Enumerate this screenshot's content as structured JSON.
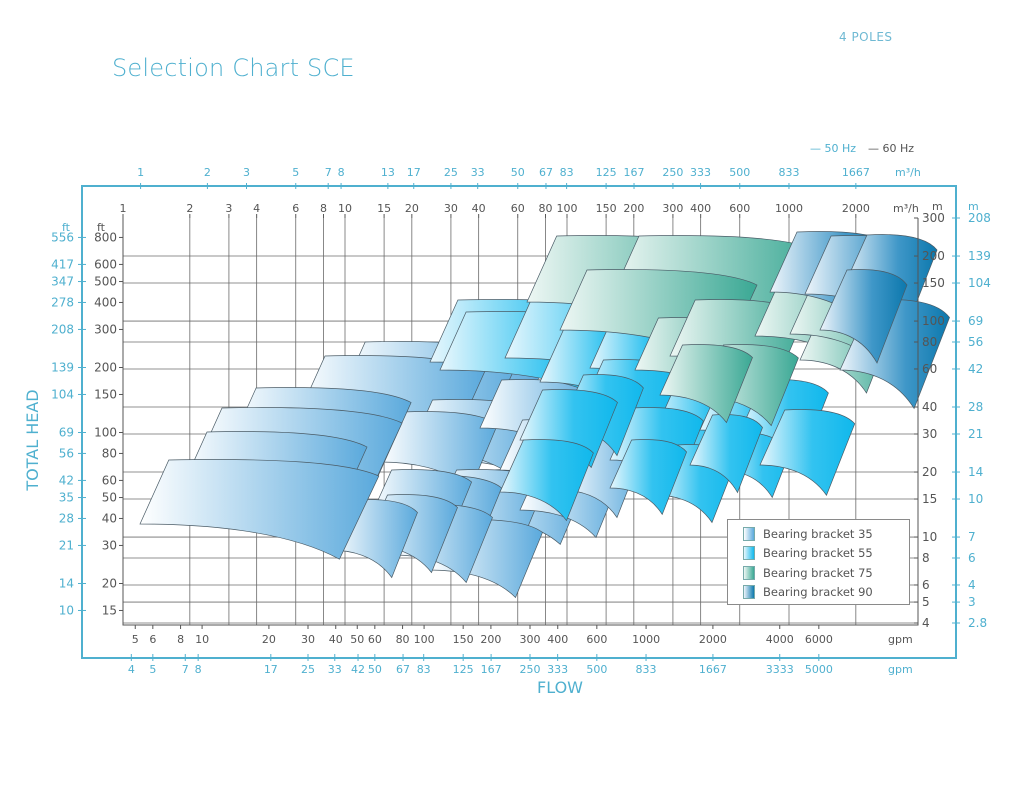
{
  "header": {
    "title": "Selection Chart SCE",
    "poles": "4 POLES",
    "legend_50hz": "— 50 Hz",
    "legend_60hz": "— 60 Hz"
  },
  "colors": {
    "accent": "#4fb0cf",
    "axis_dark": "#555555",
    "grid": "#6b6b6b",
    "bb35": "#5aa9dc",
    "bb55": "#10b8ec",
    "bb75": "#3aa894",
    "bb90": "#0c78ad"
  },
  "chart_data": {
    "type": "area",
    "title": "Selection Chart SCE",
    "subtitle": "4 POLES",
    "xlabel": "FLOW",
    "ylabel": "TOTAL HEAD",
    "x_scale": "log",
    "y_scale": "log",
    "frequency_legend": [
      "50 Hz",
      "60 Hz"
    ],
    "x_axis_top_50hz_m3h": {
      "unit": "m³/h",
      "ticks": [
        "1",
        "2",
        "3",
        "5",
        "7",
        "8",
        "13",
        "17",
        "25",
        "33",
        "50",
        "67",
        "83",
        "125",
        "167",
        "250",
        "333",
        "500",
        "833",
        "1667"
      ]
    },
    "x_axis_top_60hz_m3h": {
      "unit": "m³/h",
      "ticks": [
        "1",
        "2",
        "3",
        "4",
        "6",
        "8",
        "10",
        "15",
        "20",
        "30",
        "40",
        "60",
        "80",
        "100",
        "150",
        "200",
        "300",
        "400",
        "600",
        "1000",
        "2000"
      ]
    },
    "x_axis_bottom_60hz_gpm": {
      "unit": "gpm",
      "ticks": [
        "5",
        "6",
        "8",
        "10",
        "20",
        "30",
        "40",
        "50",
        "60",
        "80",
        "100",
        "150",
        "200",
        "300",
        "400",
        "600",
        "1000",
        "2000",
        "4000",
        "6000"
      ]
    },
    "x_axis_bottom_50hz_gpm": {
      "unit": "gpm",
      "ticks": [
        "4",
        "5",
        "7",
        "8",
        "17",
        "25",
        "33",
        "42",
        "50",
        "67",
        "83",
        "125",
        "167",
        "250",
        "333",
        "500",
        "833",
        "1667",
        "3333",
        "5000"
      ]
    },
    "y_axis_left_50hz_ft": {
      "unit": "ft",
      "ticks": [
        "556",
        "417",
        "347",
        "278",
        "208",
        "139",
        "104",
        "69",
        "56",
        "42",
        "35",
        "28",
        "21",
        "14",
        "10"
      ]
    },
    "y_axis_left_60hz_ft": {
      "unit": "ft",
      "ticks": [
        "800",
        "600",
        "500",
        "400",
        "300",
        "200",
        "150",
        "100",
        "80",
        "60",
        "50",
        "40",
        "30",
        "20",
        "15"
      ]
    },
    "y_axis_right_60hz_m": {
      "unit": "m",
      "ticks": [
        "300",
        "200",
        "150",
        "100",
        "80",
        "60",
        "40",
        "30",
        "20",
        "15",
        "10",
        "8",
        "6",
        "5",
        "4"
      ]
    },
    "y_axis_right_50hz_m": {
      "unit": "m",
      "ticks": [
        "208",
        "139",
        "104",
        "69",
        "56",
        "42",
        "28",
        "21",
        "14",
        "10",
        "7",
        "6",
        "4",
        "3",
        "2.8"
      ]
    },
    "xlim_m3h_60hz": [
      1,
      3000
    ],
    "ylim_m_60hz": [
      4,
      300
    ],
    "grid": true,
    "legend_position": "lower right, inside plot",
    "series": [
      {
        "name": "Bearing bracket 35",
        "color": "#5aa9dc",
        "flow_range_m3h": [
          1,
          300
        ],
        "head_range_m": [
          6,
          110
        ]
      },
      {
        "name": "Bearing bracket 55",
        "color": "#10b8ec",
        "flow_range_m3h": [
          20,
          2000
        ],
        "head_range_m": [
          8,
          160
        ]
      },
      {
        "name": "Bearing bracket 75",
        "color": "#3aa894",
        "flow_range_m3h": [
          70,
          2000
        ],
        "head_range_m": [
          35,
          230
        ]
      },
      {
        "name": "Bearing bracket 90",
        "color": "#0c78ad",
        "flow_range_m3h": [
          800,
          3000
        ],
        "head_range_m": [
          38,
          230
        ]
      }
    ]
  },
  "legend": {
    "items": [
      {
        "label": "Bearing bracket 35"
      },
      {
        "label": "Bearing bracket 55"
      },
      {
        "label": "Bearing bracket 75"
      },
      {
        "label": "Bearing bracket 90"
      }
    ]
  },
  "axis_titles": {
    "x": "FLOW",
    "y": "TOTAL HEAD",
    "unit_ft": "ft",
    "unit_m": "m",
    "unit_m3h": "m³/h",
    "unit_gpm": "gpm"
  }
}
